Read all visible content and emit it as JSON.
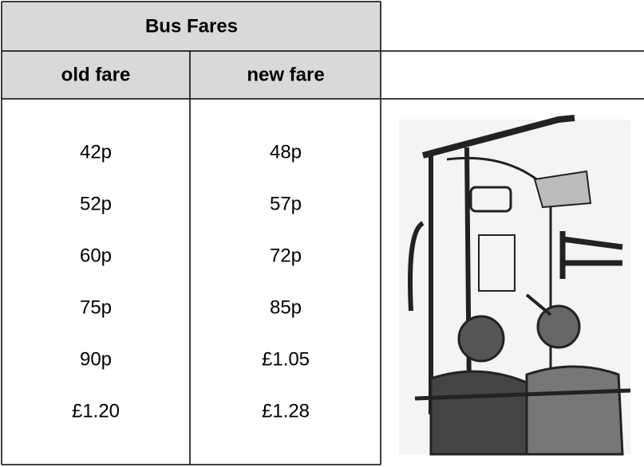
{
  "header": {
    "title": "Bus Fares"
  },
  "table": {
    "columns": [
      "old fare",
      "new fare"
    ],
    "rows": [
      [
        "42p",
        "48p"
      ],
      [
        "52p",
        "57p"
      ],
      [
        "60p",
        "72p"
      ],
      [
        "75p",
        "85p"
      ],
      [
        "90p",
        "£1.05"
      ],
      [
        "£1.20",
        "£1.28"
      ]
    ]
  }
}
